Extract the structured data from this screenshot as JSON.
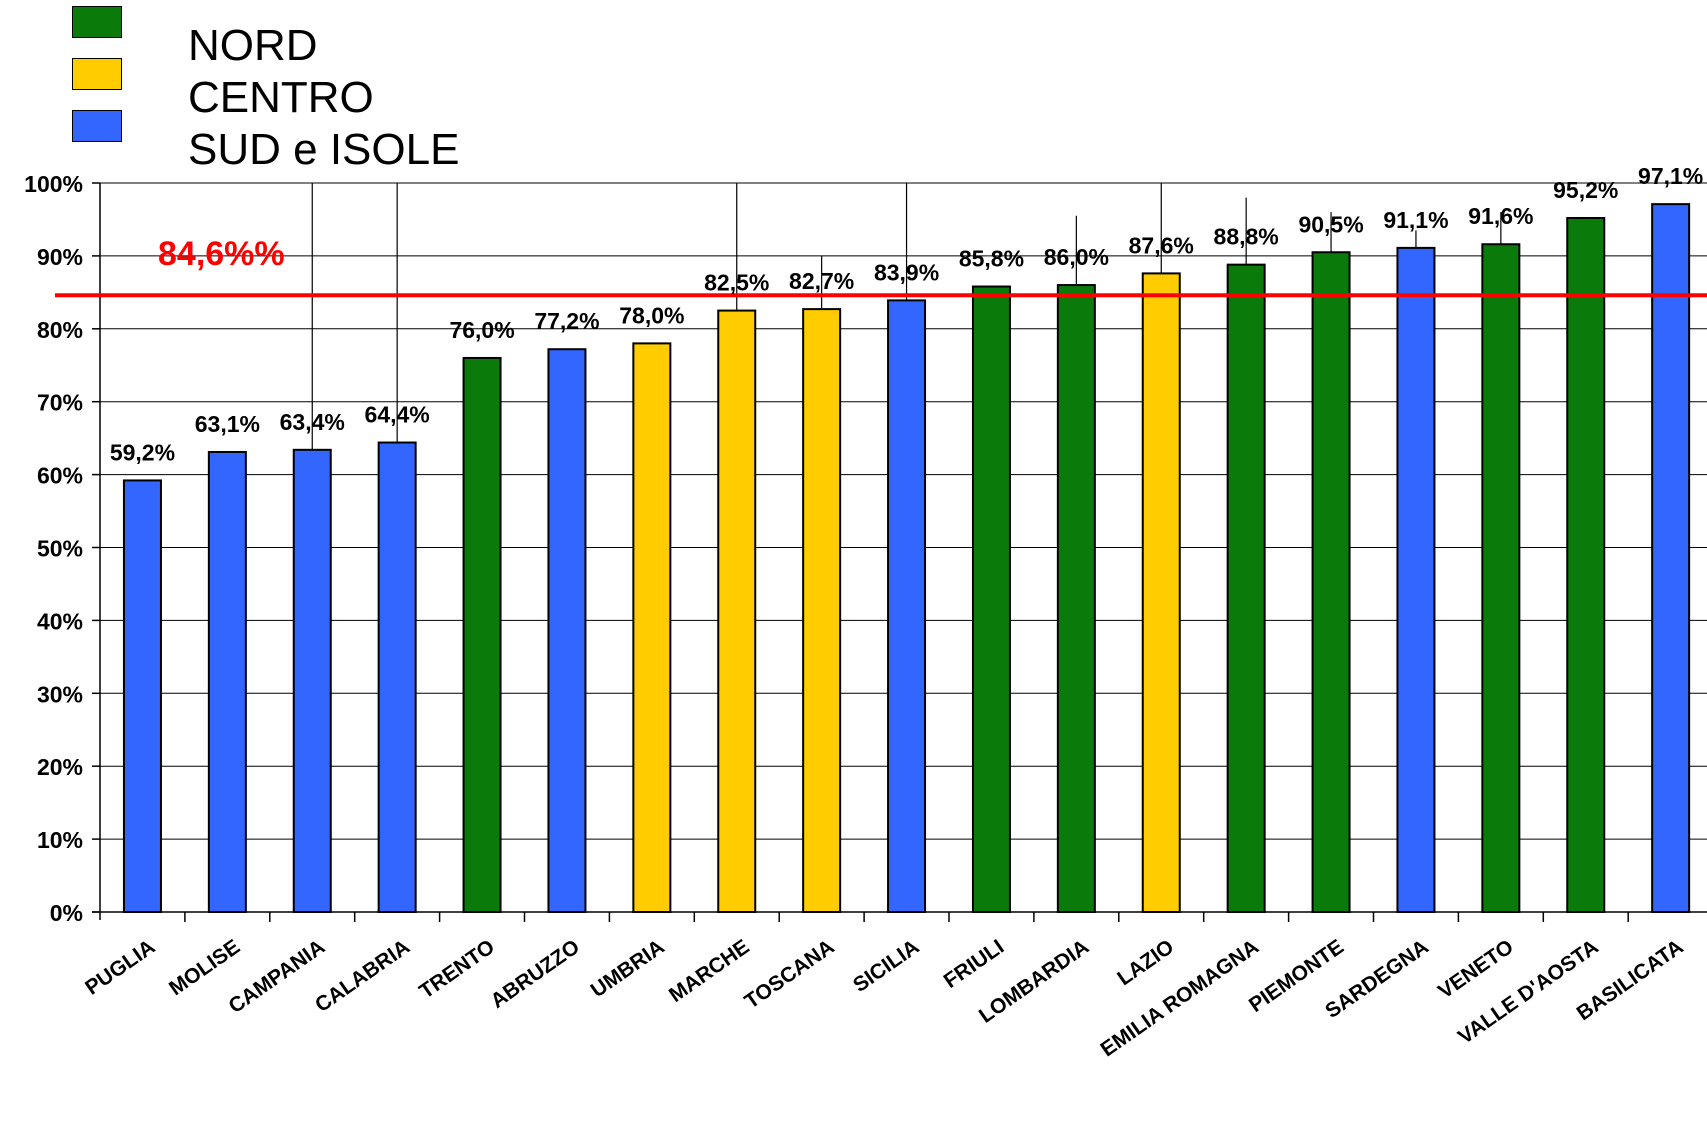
{
  "legend": {
    "items": [
      {
        "label": "NORD",
        "color": "#0a7a0a"
      },
      {
        "label": "CENTRO",
        "color": "#ffcc00"
      },
      {
        "label": "SUD e ISOLE",
        "color": "#3366ff"
      }
    ]
  },
  "chart_data": {
    "type": "bar",
    "ylim": [
      0,
      100
    ],
    "yticks": [
      "0%",
      "10%",
      "20%",
      "30%",
      "40%",
      "50%",
      "60%",
      "70%",
      "80%",
      "90%",
      "100%"
    ],
    "grid": true,
    "legend_placement": "top-left",
    "categories": [
      "PUGLIA",
      "MOLISE",
      "CAMPANIA",
      "CALABRIA",
      "TRENTO",
      "ABRUZZO",
      "UMBRIA",
      "MARCHE",
      "TOSCANA",
      "SICILIA",
      "FRIULI",
      "LOMBARDIA",
      "LAZIO",
      "EMILIA ROMAGNA",
      "PIEMONTE",
      "SARDEGNA",
      "VENETO",
      "VALLE D'AOSTA",
      "BASILICATA"
    ],
    "values": [
      59.2,
      63.1,
      63.4,
      64.4,
      76.0,
      77.2,
      78.0,
      82.5,
      82.7,
      83.9,
      85.8,
      86.0,
      87.6,
      88.8,
      90.5,
      91.1,
      91.6,
      95.2,
      97.1
    ],
    "labels": [
      "59,2%",
      "63,1%",
      "63,4%",
      "64,4%",
      "76,0%",
      "77,2%",
      "78,0%",
      "82,5%",
      "82,7%",
      "83,9%",
      "85,8%",
      "86,0%",
      "87,6%",
      "88,8%",
      "90,5%",
      "91,1%",
      "91,6%",
      "95,2%",
      "97,1%"
    ],
    "groups": [
      "SUD e ISOLE",
      "SUD e ISOLE",
      "SUD e ISOLE",
      "SUD e ISOLE",
      "NORD",
      "SUD e ISOLE",
      "CENTRO",
      "CENTRO",
      "CENTRO",
      "SUD e ISOLE",
      "NORD",
      "NORD",
      "CENTRO",
      "NORD",
      "NORD",
      "SUD e ISOLE",
      "NORD",
      "NORD",
      "SUD e ISOLE"
    ],
    "error_bars": [
      null,
      null,
      [
        20,
        100
      ],
      [
        29,
        100
      ],
      null,
      null,
      null,
      [
        56.5,
        100
      ],
      [
        75.5,
        90
      ],
      [
        69.5,
        100
      ],
      null,
      [
        65.5,
        95.5
      ],
      [
        64.5,
        100
      ],
      [
        65.5,
        98
      ],
      [
        80.5,
        96
      ],
      [
        83.5,
        93.5
      ],
      [
        79,
        96
      ],
      null,
      null
    ],
    "reference_line": {
      "value": 84.6,
      "label": "84,6%%",
      "color": "#ff0000"
    }
  }
}
